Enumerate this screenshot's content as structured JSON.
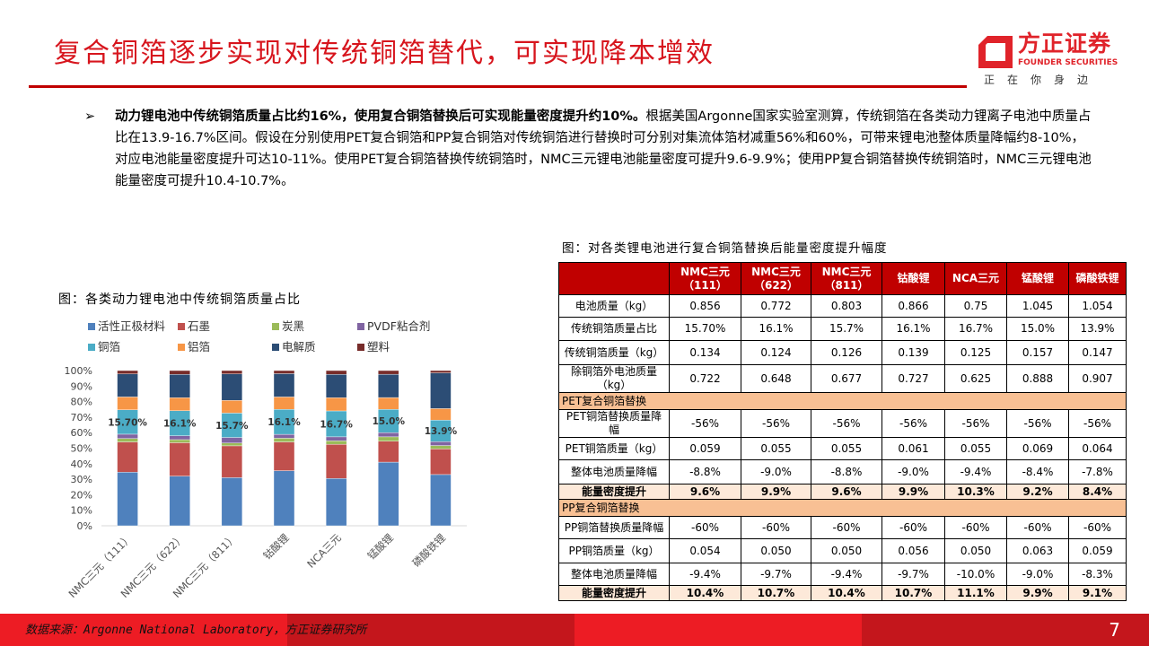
{
  "header": {
    "title": "复合铜箔逐步实现对传统铜箔替代，可实现降本增效"
  },
  "logo": {
    "cn": "方正证券",
    "en": "FOUNDER SECURITIES",
    "slogan": "正在你身边",
    "brand_color": "#e0232a"
  },
  "bullet": {
    "icon": "arrow-right-icon",
    "lead": "动力锂电池中传统铜箔质量占比约16%，使用复合铜箔替换后可实现能量密度提升约10%。",
    "body": "根据美国Argonne国家实验室测算，传统铜箔在各类动力锂离子电池中质量占比在13.9-16.7%区间。假设在分别使用PET复合铜箔和PP复合铜箔对传统铜箔进行替换时可分别对集流体箔材减重56%和60%，可带来锂电池整体质量降幅约8-10%，对应电池能量密度提升可达10-11%。使用PET复合铜箔替换传统铜箔时，NMC三元锂电池能量密度可提升9.6-9.9%；使用PP复合铜箔替换传统铜箔时，NMC三元锂电池能量密度可提升10.4-10.7%。"
  },
  "chart_data": {
    "type": "bar",
    "stacked": true,
    "title": "图：各类动力锂电池中传统铜箔质量占比",
    "categories": [
      "NMC三元（111）",
      "NMC三元（622）",
      "NMC三元（811）",
      "钴酸锂",
      "NCA三元",
      "锰酸锂",
      "磷酸铁锂"
    ],
    "yticks": [
      "0%",
      "10%",
      "20%",
      "30%",
      "40%",
      "50%",
      "60%",
      "70%",
      "80%",
      "90%",
      "100%"
    ],
    "ylim": [
      0,
      100
    ],
    "legend_position": "top",
    "series": [
      {
        "name": "活性正极材料",
        "color": "#4f81bd",
        "values": [
          34.5,
          32,
          31,
          35.5,
          30.5,
          41,
          33
        ]
      },
      {
        "name": "石墨",
        "color": "#c0504d",
        "values": [
          19.5,
          21.5,
          20.5,
          18.5,
          22,
          13.5,
          16.5
        ]
      },
      {
        "name": "炭黑",
        "color": "#9bbb59",
        "values": [
          2.2,
          2,
          1.8,
          2.4,
          2.2,
          2.8,
          2.2
        ]
      },
      {
        "name": "PVDF粘合剂",
        "color": "#8064a2",
        "values": [
          2.8,
          2.5,
          3.6,
          2.5,
          2.6,
          2.7,
          2.5
        ]
      },
      {
        "name": "铜箔",
        "color": "#4bacc6",
        "values": [
          15.7,
          16.1,
          15.7,
          16.1,
          16.7,
          15.0,
          13.9
        ]
      },
      {
        "name": "铝箔",
        "color": "#f79646",
        "values": [
          8.3,
          8.4,
          8.2,
          8.0,
          8.5,
          7.6,
          7.4
        ]
      },
      {
        "name": "电解质",
        "color": "#2c4d75",
        "values": [
          14.8,
          15,
          17,
          15,
          15,
          15,
          23
        ]
      },
      {
        "name": "塑料",
        "color": "#772c2a",
        "values": [
          2.2,
          2.5,
          2.2,
          2,
          2.5,
          2.4,
          1.5
        ]
      }
    ],
    "data_labels": [
      "15.70%",
      "16.1%",
      "15.7%",
      "16.1%",
      "16.7%",
      "15.0%",
      "13.9%"
    ]
  },
  "table": {
    "caption": "图：对各类锂电池进行复合铜箔替换后能量密度提升幅度",
    "headers": [
      "",
      "NMC三元（111）",
      "NMC三元（622）",
      "NMC三元（811）",
      "钴酸锂",
      "NCA三元",
      "锰酸锂",
      "磷酸铁锂"
    ],
    "rows": [
      {
        "type": "data",
        "cells": [
          "电池质量（kg）",
          "0.856",
          "0.772",
          "0.803",
          "0.866",
          "0.75",
          "1.045",
          "1.054"
        ]
      },
      {
        "type": "data",
        "cells": [
          "传统铜箔质量占比",
          "15.70%",
          "16.1%",
          "15.7%",
          "16.1%",
          "16.7%",
          "15.0%",
          "13.9%"
        ]
      },
      {
        "type": "data",
        "cells": [
          "传统铜箔质量（kg）",
          "0.134",
          "0.124",
          "0.126",
          "0.139",
          "0.125",
          "0.157",
          "0.147"
        ]
      },
      {
        "type": "data",
        "cells": [
          "除铜箔外电池质量（kg）",
          "0.722",
          "0.648",
          "0.677",
          "0.727",
          "0.625",
          "0.888",
          "0.907"
        ]
      },
      {
        "type": "section",
        "cells": [
          "PET复合铜箔替换"
        ]
      },
      {
        "type": "data",
        "cells": [
          "PET铜箔替换质量降幅",
          "-56%",
          "-56%",
          "-56%",
          "-56%",
          "-56%",
          "-56%",
          "-56%"
        ]
      },
      {
        "type": "data",
        "cells": [
          "PET铜箔质量（kg）",
          "0.059",
          "0.055",
          "0.055",
          "0.061",
          "0.055",
          "0.069",
          "0.064"
        ]
      },
      {
        "type": "data",
        "cells": [
          "整体电池质量降幅",
          "-8.8%",
          "-9.0%",
          "-8.8%",
          "-9.0%",
          "-9.4%",
          "-8.4%",
          "-7.8%"
        ]
      },
      {
        "type": "bold",
        "cells": [
          "能量密度提升",
          "9.6%",
          "9.9%",
          "9.6%",
          "9.9%",
          "10.3%",
          "9.2%",
          "8.4%"
        ]
      },
      {
        "type": "section",
        "cells": [
          "PP复合铜箔替换"
        ]
      },
      {
        "type": "data",
        "cells": [
          "PP铜箔替换质量降幅",
          "-60%",
          "-60%",
          "-60%",
          "-60%",
          "-60%",
          "-60%",
          "-60%"
        ]
      },
      {
        "type": "data",
        "cells": [
          "PP铜箔质量（kg）",
          "0.054",
          "0.050",
          "0.050",
          "0.056",
          "0.050",
          "0.063",
          "0.059"
        ]
      },
      {
        "type": "data",
        "cells": [
          "整体电池质量降幅",
          "-9.4%",
          "-9.7%",
          "-9.4%",
          "-9.7%",
          "-10.0%",
          "-9.0%",
          "-8.3%"
        ]
      },
      {
        "type": "bold",
        "cells": [
          "能量密度提升",
          "10.4%",
          "10.7%",
          "10.4%",
          "10.7%",
          "11.1%",
          "9.9%",
          "9.1%"
        ]
      }
    ]
  },
  "footer": {
    "source": "数据来源：Argonne National Laboratory，方正证券研究所",
    "page": "7"
  }
}
